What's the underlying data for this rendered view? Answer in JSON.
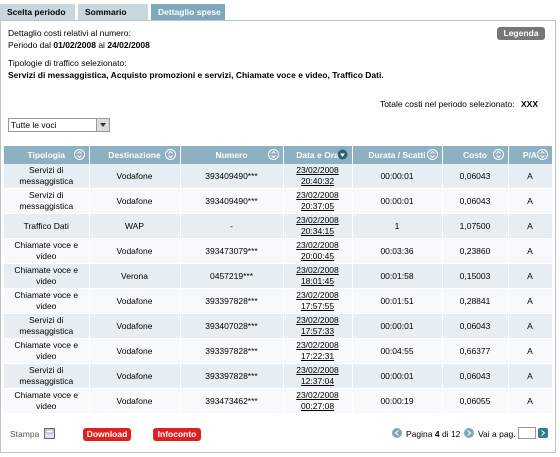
{
  "tabs": [
    "Scelta periodo",
    "Sommario",
    "Dettaglio spese"
  ],
  "legend_button": "Legenda",
  "header": {
    "number_label": "Dettaglio costi relativi al numero:",
    "period_from_label": "Periodo dal",
    "period_from": "01/02/2008",
    "period_to_label": "al",
    "period_to": "24/02/2008"
  },
  "traffic": {
    "label": "Tipologie di traffico selezionato:",
    "types": "Servizi di messaggistica, Acquisto promozioni e servizi, Chiamate voce e video, Traffico Dati."
  },
  "total": {
    "label": "Totale costi nel periodo selezionato:",
    "value": "XXX"
  },
  "filter": "Tutte le voci",
  "table": {
    "columns": [
      "Tipologia",
      "Destinazione",
      "Numero",
      "Data e Ora",
      "Durata / Scatti",
      "Costo",
      "P/A"
    ],
    "rows": [
      [
        "Servizi di messaggistica",
        "Vodafone",
        "393409490***",
        "23/02/2008",
        "20:40:32",
        "00:00:01",
        "0,06043",
        "A"
      ],
      [
        "Servizi di messaggistica",
        "Vodafone",
        "393409490***",
        "23/02/2008",
        "20:37:05",
        "00:00:01",
        "0,06043",
        "A"
      ],
      [
        "Traffico Dati",
        "WAP",
        "-",
        "23/02/2008",
        "20:34:15",
        "1",
        "1,07500",
        "A"
      ],
      [
        "Chiamate voce e video",
        "Vodafone",
        "393473079***",
        "23/02/2008",
        "20:00:45",
        "00:03:36",
        "0,23860",
        "A"
      ],
      [
        "Chiamate voce e video",
        "Verona",
        "0457219***",
        "23/02/2008",
        "18:01:45",
        "00:01:58",
        "0,15003",
        "A"
      ],
      [
        "Chiamate voce e video",
        "Vodafone",
        "393397828***",
        "23/02/2008",
        "17:57:55",
        "00:01:51",
        "0,28841",
        "A"
      ],
      [
        "Servizi di messaggistica",
        "Vodafone",
        "393407028***",
        "23/02/2008",
        "17:57:33",
        "00:00:01",
        "0,06043",
        "A"
      ],
      [
        "Chiamate voce e video",
        "Vodafone",
        "393397828***",
        "23/02/2008",
        "17:22:31",
        "00:04:55",
        "0,66377",
        "A"
      ],
      [
        "Servizi di messaggistica",
        "Vodafone",
        "393397828***",
        "23/02/2008",
        "12:37:04",
        "00:00:01",
        "0,06043",
        "A"
      ],
      [
        "Chiamate voce e video",
        "Vodafone",
        "393473462***",
        "23/02/2008",
        "00:27:08",
        "00:00:19",
        "0,06055",
        "A"
      ]
    ]
  },
  "footer": {
    "print": "Stampa",
    "download": "Download",
    "infoconto": "Infoconto",
    "page_label": "Pagina",
    "page_current": "4",
    "page_of": "di",
    "page_total": "12",
    "goto_label": "Vai a pag."
  }
}
